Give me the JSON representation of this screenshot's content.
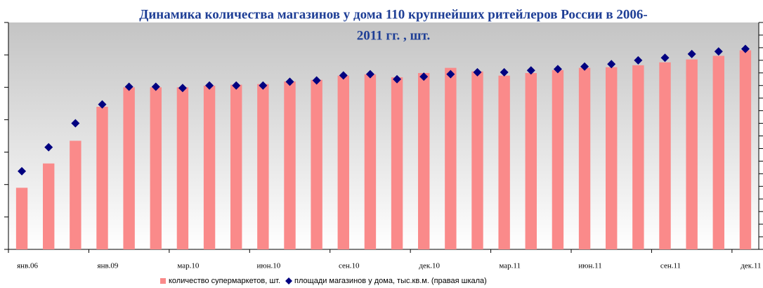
{
  "chart_data": {
    "type": "bar",
    "title": [
      "Динамика количества магазинов у дома 110 крупнейших ритейлеров России в 2006-",
      "2011 гг. , шт."
    ],
    "categories": [
      "янв.06",
      null,
      null,
      "янв.09",
      null,
      null,
      "мар.10",
      null,
      null,
      "июн.10",
      null,
      null,
      "сен.10",
      null,
      null,
      "дек.10",
      null,
      null,
      "мар.11",
      null,
      null,
      "июн.11",
      null,
      null,
      "сен.11",
      null,
      null,
      "дек.11"
    ],
    "series": [
      {
        "name": "количество супермаркетов, шт.",
        "type": "bar",
        "color": "#fa8a8a",
        "values": [
          1.9,
          2.65,
          3.35,
          4.4,
          5.0,
          5.0,
          5.0,
          5.05,
          5.08,
          5.1,
          5.18,
          5.23,
          5.36,
          5.4,
          5.31,
          5.44,
          5.6,
          5.49,
          5.36,
          5.44,
          5.53,
          5.6,
          5.62,
          5.68,
          5.77,
          5.86,
          5.97,
          6.14
        ]
      },
      {
        "name": "площади магазинов у дома, тыс.кв.м. (правая шкала)",
        "type": "scatter",
        "axis": "y2",
        "color": "#000080",
        "values": [
          6.2,
          8.1,
          10.0,
          11.5,
          12.9,
          12.9,
          12.8,
          13.0,
          13.0,
          13.0,
          13.3,
          13.4,
          13.8,
          13.9,
          13.5,
          13.7,
          13.9,
          14.05,
          14.05,
          14.2,
          14.3,
          14.5,
          14.7,
          15.0,
          15.2,
          15.5,
          15.7,
          15.9
        ]
      }
    ],
    "ylim": [
      0,
      7
    ],
    "yticks": [
      0,
      1,
      2,
      3,
      4,
      5,
      6,
      7
    ],
    "y2lim": [
      0,
      18
    ],
    "y2ticks": [
      0,
      1,
      2,
      3,
      4,
      5,
      6,
      7,
      8,
      9,
      10,
      11,
      12,
      13,
      14,
      15,
      16,
      17,
      18
    ]
  }
}
